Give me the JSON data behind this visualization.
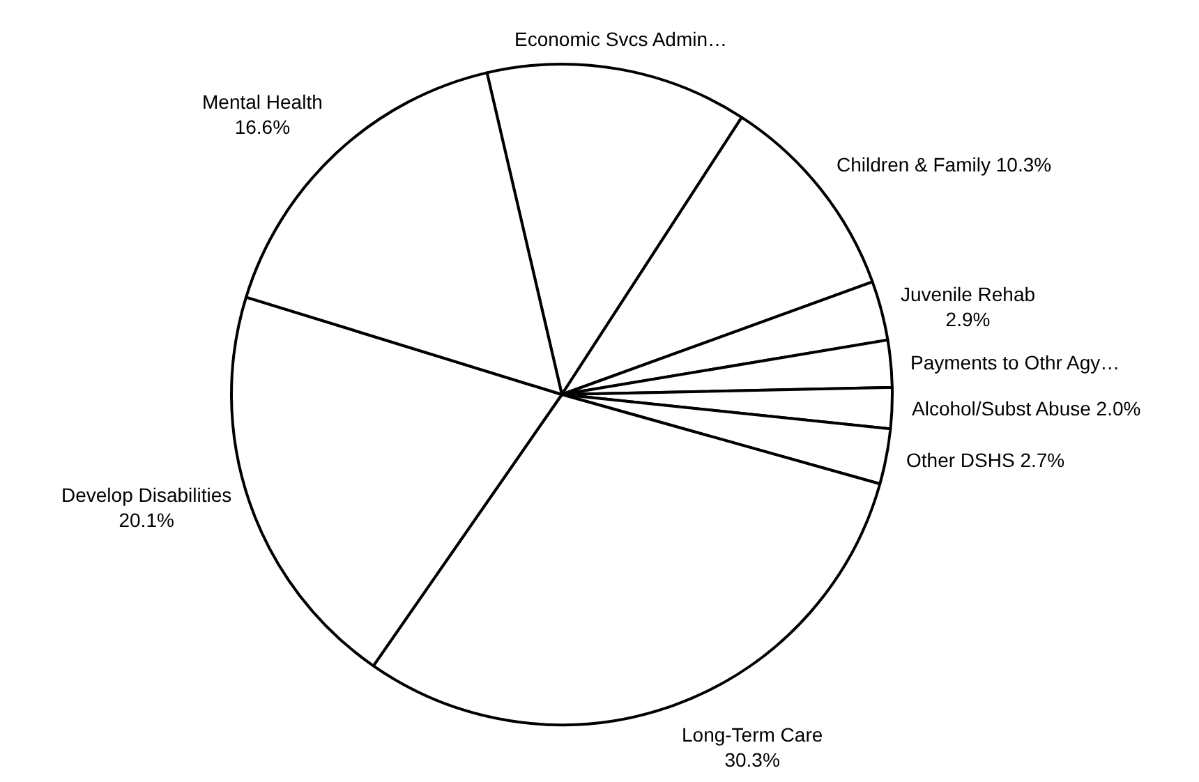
{
  "chart_data": {
    "type": "pie",
    "categories": [
      "Economic Svcs Admin…",
      "Children & Family",
      "Juvenile Rehab",
      "Payments to Othr Agy…",
      "Alcohol/Subst Abuse",
      "Other DSHS",
      "Long-Term Care",
      "Develop Disabilities",
      "Mental Health"
    ],
    "values": [
      12.8,
      10.3,
      2.9,
      2.3,
      2.0,
      2.7,
      30.3,
      20.1,
      16.6
    ],
    "value_labels": [
      null,
      "10.3%",
      "2.9%",
      null,
      "2.0%",
      "2.7%",
      "30.3%",
      "20.1%",
      "16.6%"
    ],
    "colors": [
      "#ffffff",
      "#ffffff",
      "#ffffff",
      "#ffffff",
      "#ffffff",
      "#ffffff",
      "#ffffff",
      "#ffffff",
      "#ffffff"
    ],
    "legend": false
  }
}
